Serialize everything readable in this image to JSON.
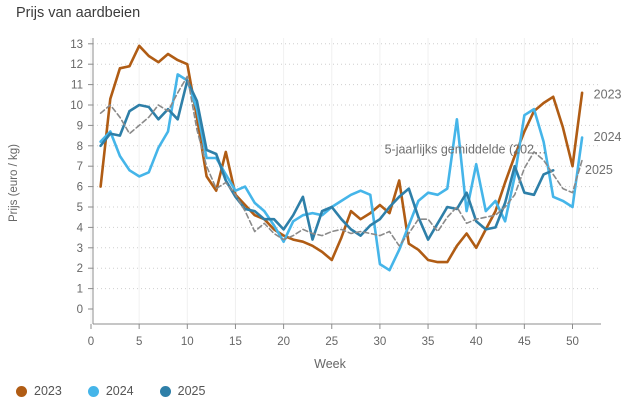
{
  "title": "Prijs van aardbeien",
  "legend": [
    {
      "label": "2023",
      "color": "#b05c14"
    },
    {
      "label": "2024",
      "color": "#45b5e9"
    },
    {
      "label": "2025",
      "color": "#2e7fa8"
    }
  ],
  "chart_data": {
    "type": "line",
    "title": "Prijs van aardbeien",
    "xlabel": "Week",
    "ylabel": "Prijs (euro / kg)",
    "x_ticks": [
      0,
      5,
      10,
      15,
      20,
      25,
      30,
      35,
      40,
      45,
      50
    ],
    "y_ticks": [
      0,
      1,
      2,
      3,
      4,
      5,
      6,
      7,
      8,
      9,
      10,
      11,
      12,
      13
    ],
    "xlim": [
      0,
      53
    ],
    "ylim": [
      0,
      13
    ],
    "grid": "horizontal-dotted plus faint vertical",
    "legend_position": "bottom-left",
    "series": [
      {
        "name": "2023",
        "color": "#b05c14",
        "style": "solid",
        "start_week": 1,
        "values": [
          6.0,
          10.3,
          11.8,
          11.9,
          12.9,
          12.4,
          12.1,
          12.5,
          12.2,
          12.0,
          9.4,
          6.5,
          5.8,
          7.7,
          5.6,
          5.1,
          4.6,
          4.4,
          3.9,
          3.6,
          3.4,
          3.3,
          3.1,
          2.8,
          2.4,
          3.5,
          4.8,
          4.4,
          4.7,
          5.1,
          4.7,
          6.3,
          3.2,
          2.9,
          2.4,
          2.3,
          2.3,
          3.1,
          3.7,
          3.0,
          3.9,
          4.8,
          6.2,
          7.5,
          8.7,
          9.7,
          10.1,
          10.4,
          8.9,
          7.0,
          10.6
        ]
      },
      {
        "name": "2024",
        "color": "#45b5e9",
        "style": "solid",
        "start_week": 1,
        "values": [
          8.2,
          8.7,
          7.5,
          6.8,
          6.5,
          6.7,
          7.9,
          8.7,
          11.5,
          11.2,
          9.8,
          7.4,
          7.4,
          6.6,
          5.8,
          6.0,
          5.2,
          4.8,
          4.1,
          3.3,
          4.3,
          4.6,
          4.7,
          4.6,
          5.0,
          5.3,
          5.6,
          5.8,
          5.6,
          2.2,
          1.9,
          2.9,
          4.1,
          5.3,
          5.7,
          5.6,
          5.9,
          9.3,
          4.8,
          7.1,
          4.8,
          5.3,
          4.3,
          6.5,
          9.5,
          9.8,
          8.2,
          5.5,
          5.3,
          5.0,
          8.4
        ]
      },
      {
        "name": "2025",
        "color": "#2e7fa8",
        "style": "solid",
        "start_week": 1,
        "values": [
          8.0,
          8.6,
          8.5,
          9.7,
          10.0,
          9.9,
          9.3,
          9.8,
          9.3,
          11.2,
          10.2,
          7.8,
          7.6,
          6.3,
          5.5,
          4.9,
          4.8,
          4.4,
          4.4,
          3.9,
          4.6,
          5.5,
          3.4,
          4.8,
          5.0,
          4.4,
          3.9,
          3.6,
          4.1,
          4.4,
          5.0,
          5.5,
          5.9,
          4.5,
          3.4,
          4.2,
          5.0,
          4.9,
          5.7,
          4.3,
          3.9,
          4.0,
          5.2,
          7.0,
          5.7,
          5.6,
          6.6,
          6.8
        ]
      },
      {
        "name": "5-jaarlijks gemiddelde (202…",
        "color": "#8a8a8a",
        "style": "dashed",
        "start_week": 1,
        "values": [
          9.6,
          10.0,
          9.4,
          8.6,
          9.0,
          9.4,
          10.0,
          9.7,
          10.6,
          11.4,
          8.8,
          7.0,
          5.9,
          6.2,
          5.6,
          4.8,
          3.8,
          4.2,
          3.7,
          3.4,
          3.6,
          3.9,
          3.7,
          3.6,
          3.8,
          3.9,
          3.7,
          3.8,
          3.7,
          3.6,
          3.8,
          3.1,
          3.7,
          4.4,
          4.4,
          3.8,
          4.5,
          5.0,
          4.2,
          4.4,
          4.5,
          4.6,
          5.0,
          5.6,
          6.9,
          7.7,
          7.3,
          6.6,
          5.9,
          5.7,
          7.3
        ]
      }
    ],
    "annotations": [
      {
        "text": "2023",
        "week": 52.2,
        "value": 10.55,
        "anchor": "start"
      },
      {
        "text": "2024",
        "week": 52.2,
        "value": 8.45,
        "anchor": "start"
      },
      {
        "text": "2025",
        "week": 51.3,
        "value": 6.85,
        "anchor": "start"
      },
      {
        "text": "5-jaarlijks gemiddelde (202…",
        "week": 47.3,
        "value": 7.85,
        "anchor": "end"
      }
    ]
  }
}
